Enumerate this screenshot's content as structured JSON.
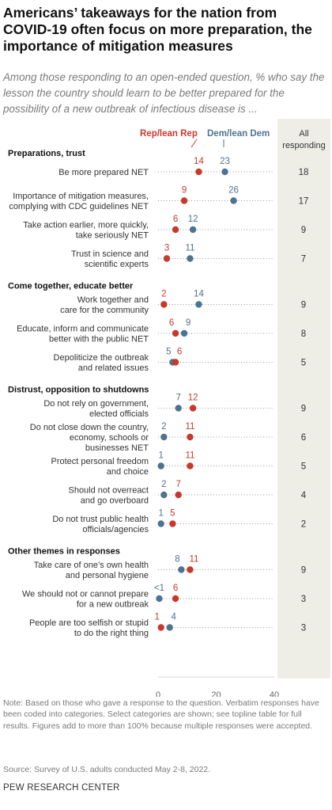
{
  "title": "Americans’ takeaways for the nation from COVID-19 often focus on more preparation, the importance of mitigation measures",
  "subtitle": "Among those responding to an open-ended question, % who say the lesson the country should learn to be better prepared for the possibility of a new outbreak of infectious disease is ...",
  "legend": {
    "rep": "Rep/lean Rep",
    "dem": "Dem/lean Dem",
    "all": "All responding"
  },
  "note": "Note: Based on those who gave a response to the question. Verbatim responses have been coded into categories. Select categories are shown; see topline table for full results. Figures add to more than 100% because multiple responses were accepted.",
  "source": "Source: Survey of U.S. adults conducted May 2-8, 2022.",
  "org": "PEW RESEARCH CENTER",
  "colors": {
    "rep": "#c8392b",
    "dem": "#4e7391",
    "all_bg": "#eeeee7"
  },
  "chart_data": {
    "type": "scatter",
    "xlim": [
      0,
      40
    ],
    "xticks": [
      "0",
      "20",
      "40"
    ],
    "series": [
      {
        "name": "Rep/lean Rep"
      },
      {
        "name": "Dem/lean Dem"
      },
      {
        "name": "All responding"
      }
    ],
    "groups": [
      {
        "category": "Preparations, trust",
        "items": [
          {
            "label": [
              "Be more prepared NET"
            ],
            "rep": 14,
            "dem": 23,
            "all": 18
          },
          {
            "label": [
              "Importance of mitigation measures,",
              "complying with CDC guidelines NET"
            ],
            "rep": 9,
            "dem": 26,
            "all": 17
          },
          {
            "label": [
              "Take action earlier, more quickly,",
              "take seriously NET"
            ],
            "rep": 6,
            "dem": 12,
            "all": 9
          },
          {
            "label": [
              "Trust in science and",
              "scientific experts"
            ],
            "rep": 3,
            "dem": 11,
            "all": 7
          }
        ]
      },
      {
        "category": "Come together, educate better",
        "items": [
          {
            "label": [
              "Work together and",
              "care for the community"
            ],
            "rep": 2,
            "dem": 14,
            "all": 9
          },
          {
            "label": [
              "Educate, inform and communicate",
              "better with the public NET"
            ],
            "rep": 6,
            "dem": 9,
            "all": 8
          },
          {
            "label": [
              "Depoliticize the outbreak",
              "and related issues"
            ],
            "rep": 6,
            "dem": 5,
            "all": 5
          }
        ]
      },
      {
        "category": "Distrust, opposition to shutdowns",
        "items": [
          {
            "label": [
              "Do not rely on government,",
              "elected officials"
            ],
            "rep": 12,
            "dem": 7,
            "all": 9
          },
          {
            "label": [
              "Do not close down the country,",
              "economy, schools or",
              "businesses NET"
            ],
            "rep": 11,
            "dem": 2,
            "all": 6
          },
          {
            "label": [
              "Protect personal freedom",
              "and choice"
            ],
            "rep": 11,
            "dem": 1,
            "all": 5
          },
          {
            "label": [
              "Should not overreact",
              "and go overboard"
            ],
            "rep": 7,
            "dem": 2,
            "all": 4
          },
          {
            "label": [
              "Do not trust public health",
              "officials/agencies"
            ],
            "rep": 5,
            "dem": 1,
            "all": 2
          }
        ]
      },
      {
        "category": "Other themes in responses",
        "items": [
          {
            "label": [
              "Take care of one’s own health",
              "and personal hygiene"
            ],
            "rep": 11,
            "dem": 8,
            "all": 9
          },
          {
            "label": [
              "We should not or cannot prepare",
              "for a new outbreak"
            ],
            "rep": 6,
            "dem": 0.4,
            "dem_label": "<1",
            "all": 3
          },
          {
            "label": [
              "People are too selfish or stupid",
              "to do the right thing"
            ],
            "rep": 1,
            "dem": 4,
            "all": 3
          }
        ]
      }
    ]
  }
}
